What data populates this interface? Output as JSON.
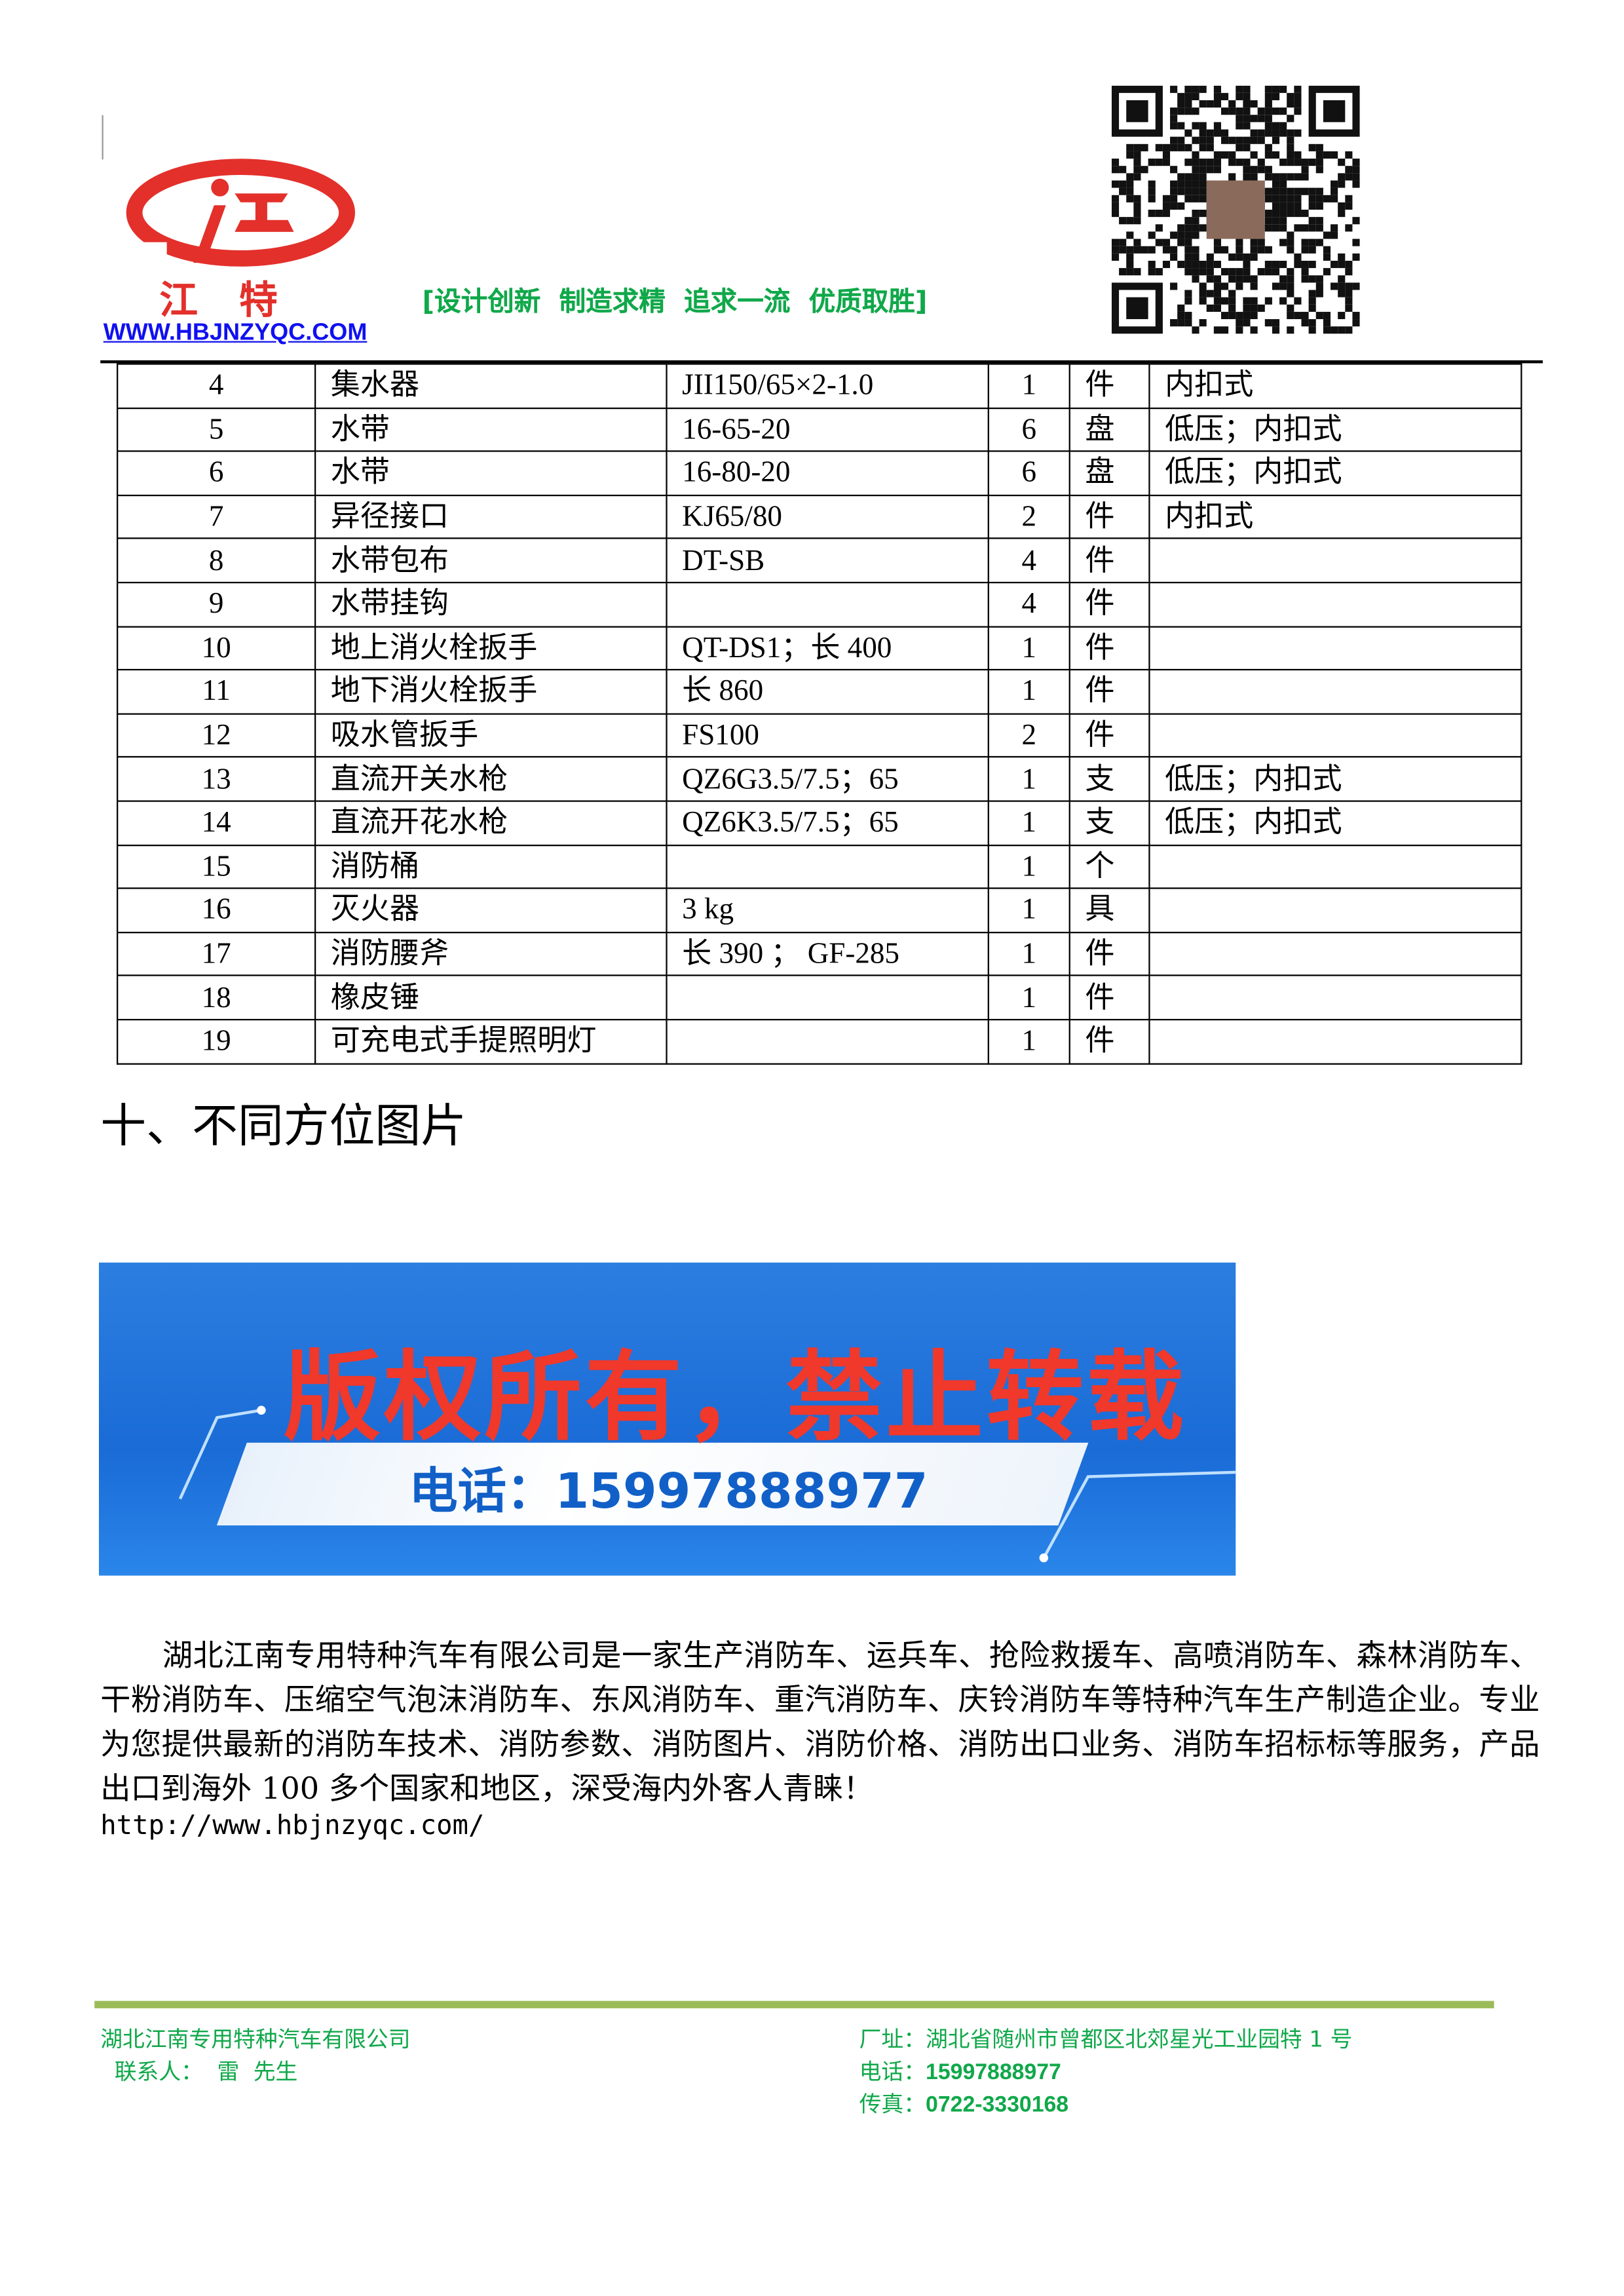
{
  "header": {
    "brand": "江特",
    "url": "WWW.HBJNZYQC.COM",
    "slogan": "[设计创新  制造求精  追求一流  优质取胜]",
    "brand_color": "#e3302b",
    "slogan_color": "#10a84a"
  },
  "table": {
    "rows": [
      [
        "4",
        "集水器",
        "JII150/65×2-1.0",
        "1",
        "件",
        "内扣式"
      ],
      [
        "5",
        "水带",
        "16-65-20",
        "6",
        "盘",
        "低压；内扣式"
      ],
      [
        "6",
        "水带",
        "16-80-20",
        "6",
        "盘",
        "低压；内扣式"
      ],
      [
        "7",
        "异径接口",
        "KJ65/80",
        "2",
        "件",
        "内扣式"
      ],
      [
        "8",
        "水带包布",
        "DT-SB",
        "4",
        "件",
        ""
      ],
      [
        "9",
        "水带挂钩",
        "",
        "4",
        "件",
        ""
      ],
      [
        "10",
        "地上消火栓扳手",
        "QT-DS1；长 400",
        "1",
        "件",
        ""
      ],
      [
        "11",
        "地下消火栓扳手",
        "长 860",
        "1",
        "件",
        ""
      ],
      [
        "12",
        "吸水管扳手",
        "FS100",
        "2",
        "件",
        ""
      ],
      [
        "13",
        "直流开关水枪",
        "QZ6G3.5/7.5；65",
        "1",
        "支",
        "低压；内扣式"
      ],
      [
        "14",
        "直流开花水枪",
        "QZ6K3.5/7.5；65",
        "1",
        "支",
        "低压；内扣式"
      ],
      [
        "15",
        "消防桶",
        "",
        "1",
        "个",
        ""
      ],
      [
        "16",
        "灭火器",
        "3 kg",
        "1",
        "具",
        ""
      ],
      [
        "17",
        "消防腰斧",
        "长 390 ； GF-285",
        "1",
        "件",
        ""
      ],
      [
        "18",
        "橡皮锤",
        "",
        "1",
        "件",
        ""
      ],
      [
        "19",
        "可充电式手提照明灯",
        "",
        "1",
        "件",
        ""
      ]
    ]
  },
  "section_title": "十、不同方位图片",
  "banner": {
    "notice": "版权所有，禁止转载",
    "phone": "电话：15997888977"
  },
  "body": {
    "paragraph": "湖北江南专用特种汽车有限公司是一家生产消防车、运兵车、抢险救援车、高喷消防车、森林消防车、干粉消防车、压缩空气泡沫消防车、东风消防车、重汽消防车、庆铃消防车等特种汽车生产制造企业。专业为您提供最新的消防车技术、消防参数、消防图片、消防价格、消防出口业务、消防车招标标等服务，产品出口到海外 100 多个国家和地区，深受海内外客人青睐！",
    "link": "http://www.hbjnzyqc.com/"
  },
  "footer": {
    "company": "湖北江南专用特种汽车有限公司",
    "contact": "  联系人：  雷  先生",
    "address": "厂址：湖北省随州市曾都区北郊星光工业园特 1 号",
    "phone_label": "电话：",
    "phone": "15997888977",
    "fax_label": "传真：",
    "fax": "0722-3330168",
    "accent": "#9bbb59"
  }
}
